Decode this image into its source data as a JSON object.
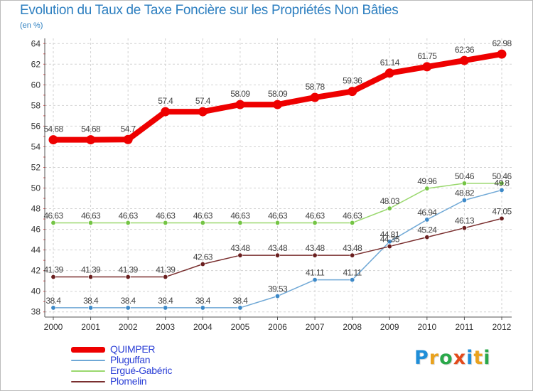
{
  "title": "Evolution du Taux de Taxe Foncière sur les Propriétés Non Bâties",
  "subtitle": "(en %)",
  "logo": {
    "text": "Proxiti",
    "letters": [
      {
        "ch": "P",
        "color": "#1f8ed8"
      },
      {
        "ch": "r",
        "color": "#e9a21e"
      },
      {
        "ch": "o",
        "color": "#2aa84a"
      },
      {
        "ch": "x",
        "color": "#e24a1b"
      },
      {
        "ch": "i",
        "color": "#1f8ed8"
      },
      {
        "ch": "t",
        "color": "#e9a21e"
      },
      {
        "ch": "i",
        "color": "#2aa84a"
      }
    ]
  },
  "chart_data": {
    "type": "line",
    "title": "Evolution du Taux de Taxe Foncière sur les Propriétés Non Bâties",
    "ylabel": "(en %)",
    "xlabel": "",
    "categories": [
      "2000",
      "2001",
      "2002",
      "2003",
      "2004",
      "2005",
      "2006",
      "2007",
      "2008",
      "2009",
      "2010",
      "2011",
      "2012"
    ],
    "ylim": [
      37.5,
      64.5
    ],
    "yticks": [
      38,
      40,
      42,
      44,
      46,
      48,
      50,
      52,
      54,
      56,
      58,
      60,
      62,
      64
    ],
    "grid": true,
    "legend_position": "bottom-left",
    "series": [
      {
        "name": "QUIMPER",
        "color": "#ee0000",
        "emphasis": "thick",
        "values": [
          54.68,
          54.68,
          54.7,
          57.4,
          57.4,
          58.09,
          58.09,
          58.78,
          59.36,
          61.14,
          61.75,
          62.36,
          62.98
        ],
        "labels": [
          "54.68",
          "54.68",
          "54.7",
          "57.4",
          "57.4",
          "58.09",
          "58.09",
          "58.78",
          "59.36",
          "61.14",
          "61.75",
          "62.36",
          "62.98"
        ]
      },
      {
        "name": "Pluguffan",
        "color": "#6fa8d6",
        "marker_color": "#3d89c8",
        "emphasis": "thin",
        "values": [
          38.4,
          38.4,
          38.4,
          38.4,
          38.4,
          38.4,
          39.53,
          41.11,
          41.11,
          44.81,
          46.94,
          48.82,
          49.8
        ],
        "labels": [
          "38.4",
          "38.4",
          "38.4",
          "38.4",
          "38.4",
          "38.4",
          "39.53",
          "41.11",
          "41.11",
          "44.81",
          "46.94",
          "48.82",
          "49.8"
        ]
      },
      {
        "name": "Ergué-Gabéric",
        "color": "#9ad86e",
        "marker_color": "#74c444",
        "emphasis": "thin",
        "values": [
          46.63,
          46.63,
          46.63,
          46.63,
          46.63,
          46.63,
          46.63,
          46.63,
          46.63,
          48.03,
          49.96,
          50.46,
          50.46
        ],
        "labels": [
          "46.63",
          "46.63",
          "46.63",
          "46.63",
          "46.63",
          "46.63",
          "46.63",
          "46.63",
          "46.63",
          "48.03",
          "49.96",
          "50.46",
          "50.46"
        ]
      },
      {
        "name": "Plomelin",
        "color": "#7a2f2f",
        "marker_color": "#6a1f1f",
        "emphasis": "thin",
        "values": [
          41.39,
          41.39,
          41.39,
          41.39,
          42.63,
          43.48,
          43.48,
          43.48,
          43.48,
          44.35,
          45.24,
          46.13,
          47.05
        ],
        "labels": [
          "41.39",
          "41.39",
          "41.39",
          "41.39",
          "42.63",
          "43.48",
          "43.48",
          "43.48",
          "43.48",
          "44.35",
          "45.24",
          "46.13",
          "47.05"
        ]
      }
    ]
  }
}
